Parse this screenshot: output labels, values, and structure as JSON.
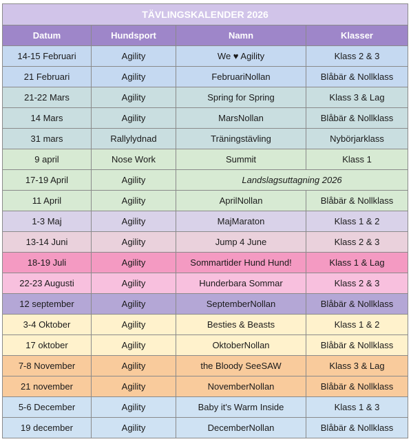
{
  "title": "TÄVLINGSKALENDER 2026",
  "columns": [
    "Datum",
    "Hundsport",
    "Namn",
    "Klasser"
  ],
  "rows": [
    {
      "datum": "14-15 Februari",
      "hundsport": "Agility",
      "namn": "We ♥ Agility",
      "klasser": "Klass 2 & 3",
      "bg": "#c5d9f1"
    },
    {
      "datum": "21 Februari",
      "hundsport": "Agility",
      "namn": "FebruariNollan",
      "klasser": "Blåbär & Nollklass",
      "bg": "#c5d9f1"
    },
    {
      "datum": "21-22 Mars",
      "hundsport": "Agility",
      "namn": "Spring for Spring",
      "klasser": "Klass 3 & Lag",
      "bg": "#c9dee0"
    },
    {
      "datum": "14 Mars",
      "hundsport": "Agility",
      "namn": "MarsNollan",
      "klasser": "Blåbär & Nollklass",
      "bg": "#c9dee0"
    },
    {
      "datum": "31 mars",
      "hundsport": "Rallylydnad",
      "namn": "Träningstävling",
      "klasser": "Nybörjarklass",
      "bg": "#c9dee0"
    },
    {
      "datum": "9 april",
      "hundsport": "Nose Work",
      "namn": "Summit",
      "klasser": "Klass 1",
      "bg": "#d7ead3"
    },
    {
      "datum": "17-19 April",
      "hundsport": "Agility",
      "namn": "Landslagsuttagning 2026",
      "klasser": "",
      "bg": "#d7ead3",
      "merged": true
    },
    {
      "datum": "11 April",
      "hundsport": "Agility",
      "namn": "AprilNollan",
      "klasser": "Blåbär & Nollklass",
      "bg": "#d7ead3"
    },
    {
      "datum": "1-3 Maj",
      "hundsport": "Agility",
      "namn": "MajMaraton",
      "klasser": "Klass 1 & 2",
      "bg": "#d9d2e9"
    },
    {
      "datum": "13-14 Juni",
      "hundsport": "Agility",
      "namn": "Jump 4 June",
      "klasser": "Klass 2 & 3",
      "bg": "#ead1dc"
    },
    {
      "datum": "18-19 Juli",
      "hundsport": "Agility",
      "namn": "Sommartider Hund Hund!",
      "klasser": "Klass 1 & Lag",
      "bg": "#f49ac2"
    },
    {
      "datum": "22-23 Augusti",
      "hundsport": "Agility",
      "namn": "Hunderbara Sommar",
      "klasser": "Klass 2 & 3",
      "bg": "#f8c0de"
    },
    {
      "datum": "12 september",
      "hundsport": "Agility",
      "namn": "SeptemberNollan",
      "klasser": "Blåbär & Nollklass",
      "bg": "#b4a7d6"
    },
    {
      "datum": "3-4 Oktober",
      "hundsport": "Agility",
      "namn": "Besties & Beasts",
      "klasser": "Klass 1 & 2",
      "bg": "#fff2cc"
    },
    {
      "datum": "17 oktober",
      "hundsport": "Agility",
      "namn": "OktoberNollan",
      "klasser": "Blåbär & Nollklass",
      "bg": "#fff2cc"
    },
    {
      "datum": "7-8 November",
      "hundsport": "Agility",
      "namn": "the Bloody SeeSAW",
      "klasser": "Klass 3 & Lag",
      "bg": "#f9cb9c"
    },
    {
      "datum": "21 november",
      "hundsport": "Agility",
      "namn": "NovemberNollan",
      "klasser": "Blåbär & Nollklass",
      "bg": "#f9cb9c"
    },
    {
      "datum": "5-6 December",
      "hundsport": "Agility",
      "namn": "Baby it's Warm Inside",
      "klasser": "Klass 1 & 3",
      "bg": "#cfe2f3"
    },
    {
      "datum": "19 december",
      "hundsport": "Agility",
      "namn": "DecemberNollan",
      "klasser": "Blåbär & Nollklass",
      "bg": "#cfe2f3"
    }
  ]
}
